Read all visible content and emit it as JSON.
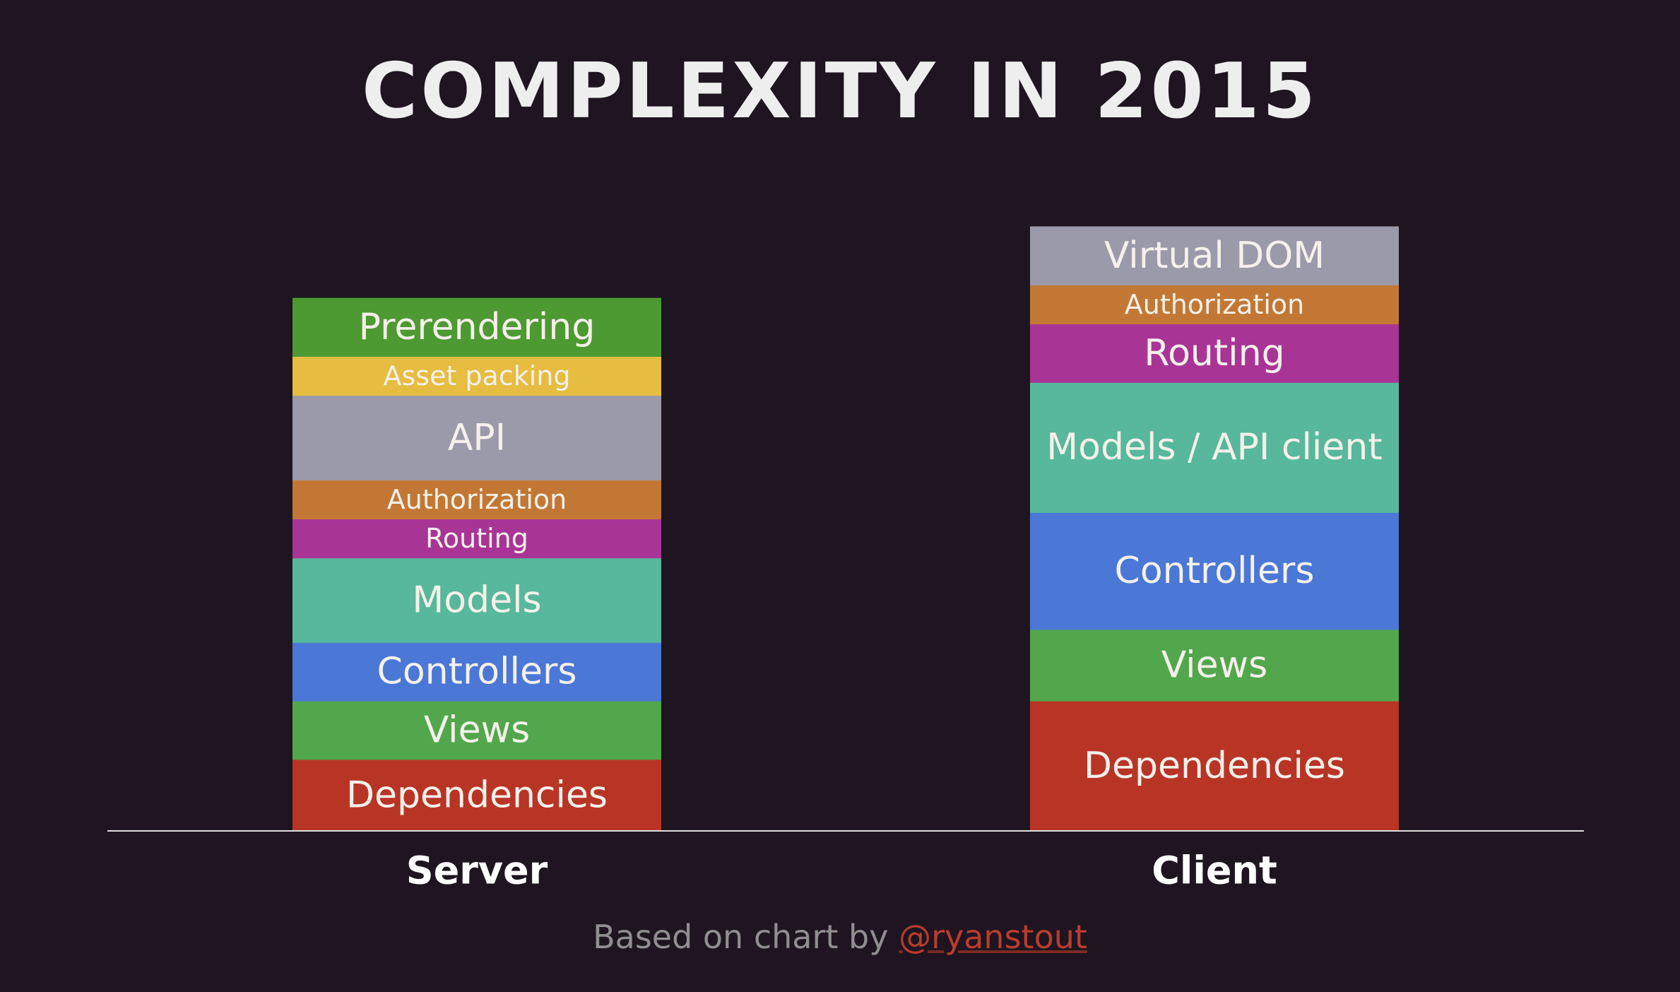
{
  "title": "COMPLEXITY IN 2015",
  "footer": {
    "text": "Based on chart by ",
    "link": "@ryanstout",
    "link_color": "#b93c2e"
  },
  "chart_data": {
    "type": "bar",
    "stacked": true,
    "title": "COMPLEXITY IN 2015",
    "xlabel": "",
    "ylabel": "",
    "grid": false,
    "legend": "none",
    "categories": [
      "Server",
      "Client"
    ],
    "stacks": [
      {
        "category": "Server",
        "segments": [
          {
            "label": "Dependencies",
            "value": 11,
            "color": "#b83526",
            "size": "large"
          },
          {
            "label": "Views",
            "value": 9,
            "color": "#52a74d",
            "size": "large"
          },
          {
            "label": "Controllers",
            "value": 9,
            "color": "#4b78d6",
            "size": "large"
          },
          {
            "label": "Models",
            "value": 13,
            "color": "#57b89c",
            "size": "large"
          },
          {
            "label": "Routing",
            "value": 6,
            "color": "#a83596",
            "size": "small"
          },
          {
            "label": "Authorization",
            "value": 6,
            "color": "#c27834",
            "size": "small"
          },
          {
            "label": "API",
            "value": 13,
            "color": "#9a9aab",
            "size": "large"
          },
          {
            "label": "Asset packing",
            "value": 6,
            "color": "#e6bc41",
            "size": "small"
          },
          {
            "label": "Prerendering",
            "value": 9,
            "color": "#4d9a32",
            "size": "large"
          }
        ]
      },
      {
        "category": "Client",
        "segments": [
          {
            "label": "Dependencies",
            "value": 20,
            "color": "#b83526",
            "size": "large"
          },
          {
            "label": "Views",
            "value": 11,
            "color": "#52a74d",
            "size": "large"
          },
          {
            "label": "Controllers",
            "value": 18,
            "color": "#4b78d6",
            "size": "large"
          },
          {
            "label": "Models / API client",
            "value": 20,
            "color": "#57b89c",
            "size": "large"
          },
          {
            "label": "Routing",
            "value": 9,
            "color": "#a83596",
            "size": "large"
          },
          {
            "label": "Authorization",
            "value": 6,
            "color": "#c27834",
            "size": "small"
          },
          {
            "label": "Virtual DOM",
            "value": 9,
            "color": "#9a9aab",
            "size": "large"
          }
        ]
      }
    ]
  },
  "colors": {
    "background": "#1e1520",
    "title": "#eeeeee",
    "baseline": "#e0e0e0",
    "segment_text": "#f5f0ea",
    "category_text": "#ffffff",
    "footer_text": "#8f8f8f"
  }
}
